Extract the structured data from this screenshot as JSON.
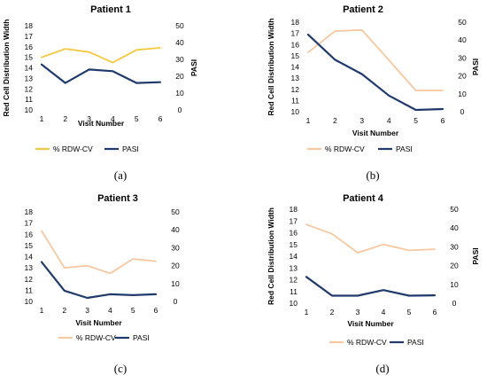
{
  "chart_data": [
    {
      "type": "line",
      "panel": "(a)",
      "title": "Patient 1",
      "xlabel": "Visit Number",
      "ylabel": "Red Cell Distribution Width",
      "y2label": "PASI",
      "categories": [
        1,
        2,
        3,
        4,
        5,
        6
      ],
      "ylim": [
        10,
        18
      ],
      "y2lim": [
        0,
        50
      ],
      "yticks": [
        10,
        11,
        12,
        13,
        14,
        15,
        16,
        17,
        18
      ],
      "y2ticks": [
        0,
        10,
        20,
        30,
        40,
        50
      ],
      "legend_position": "bottom",
      "series": [
        {
          "name": "% RDW-CV",
          "axis": "left",
          "color": "#f5c842",
          "values": [
            15.0,
            15.8,
            15.5,
            14.5,
            15.7,
            15.9
          ]
        },
        {
          "name": "PASI",
          "axis": "right",
          "color": "#1f3a6b",
          "values": [
            27,
            16,
            24,
            23,
            16,
            16.5
          ]
        }
      ]
    },
    {
      "type": "line",
      "panel": "(b)",
      "title": "Patient 2",
      "xlabel": "Visit Number",
      "ylabel": "Red Cell Distribution Width",
      "y2label": "PASI",
      "categories": [
        1,
        2,
        3,
        4,
        5,
        6
      ],
      "ylim": [
        10,
        18
      ],
      "y2lim": [
        0,
        50
      ],
      "yticks": [
        10,
        11,
        12,
        13,
        14,
        15,
        16,
        17,
        18
      ],
      "y2ticks": [
        0,
        10,
        20,
        30,
        40,
        50
      ],
      "legend_position": "bottom",
      "series": [
        {
          "name": "% RDW-CV",
          "axis": "left",
          "color": "#f7c8a0",
          "values": [
            15.3,
            17.2,
            17.3,
            14.6,
            11.9,
            11.9
          ]
        },
        {
          "name": "PASI",
          "axis": "right",
          "color": "#1f3a6b",
          "values": [
            43,
            29,
            21,
            9,
            1,
            1.5
          ]
        }
      ]
    },
    {
      "type": "line",
      "panel": "(c)",
      "title": "Patient 3",
      "xlabel": "Visit Number",
      "ylabel": "",
      "y2label": "",
      "categories": [
        1,
        2,
        3,
        4,
        5,
        6
      ],
      "ylim": [
        10,
        18
      ],
      "y2lim": [
        0,
        50
      ],
      "yticks": [
        10,
        11,
        12,
        13,
        14,
        15,
        16,
        17,
        18
      ],
      "y2ticks": [
        0,
        10,
        20,
        30,
        40,
        50
      ],
      "legend_position": "bottom",
      "series": [
        {
          "name": "% RDW-CV",
          "axis": "left",
          "color": "#f7c8a0",
          "values": [
            16.3,
            13.0,
            13.2,
            12.5,
            13.8,
            13.6
          ]
        },
        {
          "name": "PASI",
          "axis": "right",
          "color": "#1f3a6b",
          "values": [
            22,
            6,
            2,
            4,
            3.5,
            4
          ]
        }
      ]
    },
    {
      "type": "line",
      "panel": "(d)",
      "title": "Patient 4",
      "xlabel": "Visit Number",
      "ylabel": "Red Cell Distribution Width",
      "y2label": "PASI",
      "categories": [
        1,
        2,
        3,
        4,
        5,
        6
      ],
      "ylim": [
        10,
        18
      ],
      "y2lim": [
        0,
        50
      ],
      "yticks": [
        10,
        11,
        12,
        13,
        14,
        15,
        16,
        17,
        18
      ],
      "y2ticks": [
        0,
        10,
        20,
        30,
        40,
        50
      ],
      "legend_position": "bottom",
      "series": [
        {
          "name": "% RDW-CV",
          "axis": "left",
          "color": "#f7c8a0",
          "values": [
            16.7,
            15.9,
            14.3,
            15.0,
            14.5,
            14.6
          ]
        },
        {
          "name": "PASI",
          "axis": "right",
          "color": "#1f3a6b",
          "values": [
            14,
            4,
            4,
            7,
            4,
            4.2
          ]
        }
      ]
    }
  ]
}
